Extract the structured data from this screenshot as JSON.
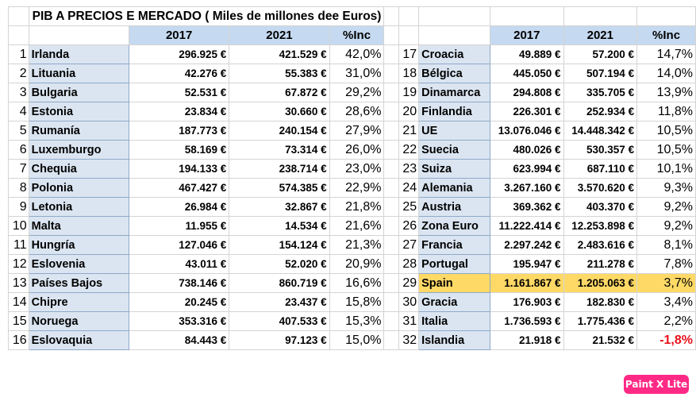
{
  "title": "PIB A PRECIOS E MERCADO ( Miles de millones dee Euros)",
  "headers": {
    "y1": "2017",
    "y2": "2021",
    "inc": "%Inc"
  },
  "left_rows": [
    {
      "idx": "1",
      "name": "Irlanda",
      "v2017": "296.925 €",
      "v2021": "421.529 €",
      "inc": "42,0%"
    },
    {
      "idx": "2",
      "name": "Lituania",
      "v2017": "42.276 €",
      "v2021": "55.383 €",
      "inc": "31,0%"
    },
    {
      "idx": "3",
      "name": "Bulgaria",
      "v2017": "52.531 €",
      "v2021": "67.872 €",
      "inc": "29,2%"
    },
    {
      "idx": "4",
      "name": "Estonia",
      "v2017": "23.834 €",
      "v2021": "30.660 €",
      "inc": "28,6%"
    },
    {
      "idx": "5",
      "name": "Rumanía",
      "v2017": "187.773 €",
      "v2021": "240.154 €",
      "inc": "27,9%"
    },
    {
      "idx": "6",
      "name": "Luxemburgo",
      "v2017": "58.169 €",
      "v2021": "73.314 €",
      "inc": "26,0%"
    },
    {
      "idx": "7",
      "name": "Chequia",
      "v2017": "194.133 €",
      "v2021": "238.714 €",
      "inc": "23,0%"
    },
    {
      "idx": "8",
      "name": "Polonia",
      "v2017": "467.427 €",
      "v2021": "574.385 €",
      "inc": "22,9%"
    },
    {
      "idx": "9",
      "name": "Letonia",
      "v2017": "26.984 €",
      "v2021": "32.867 €",
      "inc": "21,8%"
    },
    {
      "idx": "10",
      "name": "Malta",
      "v2017": "11.955 €",
      "v2021": "14.534 €",
      "inc": "21,6%"
    },
    {
      "idx": "11",
      "name": "Hungría",
      "v2017": "127.046 €",
      "v2021": "154.124 €",
      "inc": "21,3%"
    },
    {
      "idx": "12",
      "name": "Eslovenia",
      "v2017": "43.011 €",
      "v2021": "52.020 €",
      "inc": "20,9%"
    },
    {
      "idx": "13",
      "name": "Países Bajos",
      "v2017": "738.146 €",
      "v2021": "860.719 €",
      "inc": "16,6%"
    },
    {
      "idx": "14",
      "name": "Chipre",
      "v2017": "20.245 €",
      "v2021": "23.437 €",
      "inc": "15,8%"
    },
    {
      "idx": "15",
      "name": "Noruega",
      "v2017": "353.316 €",
      "v2021": "407.533 €",
      "inc": "15,3%"
    },
    {
      "idx": "16",
      "name": "Eslovaquia",
      "v2017": "84.443 €",
      "v2021": "97.123 €",
      "inc": "15,0%"
    }
  ],
  "right_rows": [
    {
      "idx": "17",
      "name": "Croacia",
      "v2017": "49.889 €",
      "v2021": "57.200 €",
      "inc": "14,7%"
    },
    {
      "idx": "18",
      "name": "Bélgica",
      "v2017": "445.050 €",
      "v2021": "507.194 €",
      "inc": "14,0%"
    },
    {
      "idx": "19",
      "name": "Dinamarca",
      "v2017": "294.808 €",
      "v2021": "335.705 €",
      "inc": "13,9%"
    },
    {
      "idx": "20",
      "name": "Finlandia",
      "v2017": "226.301 €",
      "v2021": "252.934 €",
      "inc": "11,8%"
    },
    {
      "idx": "21",
      "name": "UE",
      "v2017": "13.076.046 €",
      "v2021": "14.448.342 €",
      "inc": "10,5%"
    },
    {
      "idx": "22",
      "name": "Suecia",
      "v2017": "480.026 €",
      "v2021": "530.357 €",
      "inc": "10,5%"
    },
    {
      "idx": "23",
      "name": "Suiza",
      "v2017": "623.994 €",
      "v2021": "687.110 €",
      "inc": "10,1%"
    },
    {
      "idx": "24",
      "name": "Alemania",
      "v2017": "3.267.160 €",
      "v2021": "3.570.620 €",
      "inc": "9,3%"
    },
    {
      "idx": "25",
      "name": "Austria",
      "v2017": "369.362 €",
      "v2021": "403.370 €",
      "inc": "9,2%"
    },
    {
      "idx": "26",
      "name": "Zona Euro",
      "v2017": "11.222.414 €",
      "v2021": "12.253.898 €",
      "inc": "9,2%"
    },
    {
      "idx": "27",
      "name": "Francia",
      "v2017": "2.297.242 €",
      "v2021": "2.483.616 €",
      "inc": "8,1%"
    },
    {
      "idx": "28",
      "name": "Portugal",
      "v2017": "195.947 €",
      "v2021": "211.278 €",
      "inc": "7,8%"
    },
    {
      "idx": "29",
      "name": "Spain",
      "v2017": "1.161.867 €",
      "v2021": "1.205.063 €",
      "inc": "3,7%",
      "highlight": true
    },
    {
      "idx": "30",
      "name": "Gracia",
      "v2017": "176.903 €",
      "v2021": "182.830 €",
      "inc": "3,4%"
    },
    {
      "idx": "31",
      "name": "Italia",
      "v2017": "1.736.593 €",
      "v2021": "1.775.436 €",
      "inc": "2,2%"
    },
    {
      "idx": "32",
      "name": "Islandia",
      "v2017": "21.918 €",
      "v2021": "21.532 €",
      "inc": "-1,8%",
      "negative": true
    }
  ],
  "colors": {
    "header_fill": "#c5d9f0",
    "name_fill": "#dbe5f1",
    "highlight": "#ffd966",
    "negative": "#e8111b",
    "watermark": "#ff2a86"
  },
  "watermark": "Paint X Lite"
}
